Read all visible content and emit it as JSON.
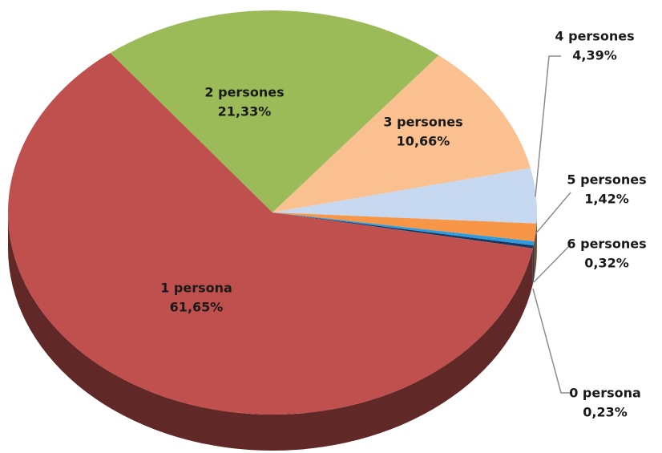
{
  "chart_data": {
    "type": "pie",
    "categories": [
      "0 persona",
      "1 persona",
      "2 persones",
      "3 persones",
      "4 persones",
      "5 persones",
      "6 persones"
    ],
    "values": [
      0.23,
      61.65,
      21.33,
      10.66,
      4.39,
      1.42,
      0.32
    ],
    "value_labels": [
      "0,23%",
      "61,65%",
      "21,33%",
      "10,66%",
      "4,39%",
      "1,42%",
      "0,32%"
    ],
    "colors": [
      "#17375e",
      "#c0504d",
      "#9bbb59",
      "#fac090",
      "#c6d9f1",
      "#f79646",
      "#2e9be0"
    ],
    "three_d": true
  }
}
